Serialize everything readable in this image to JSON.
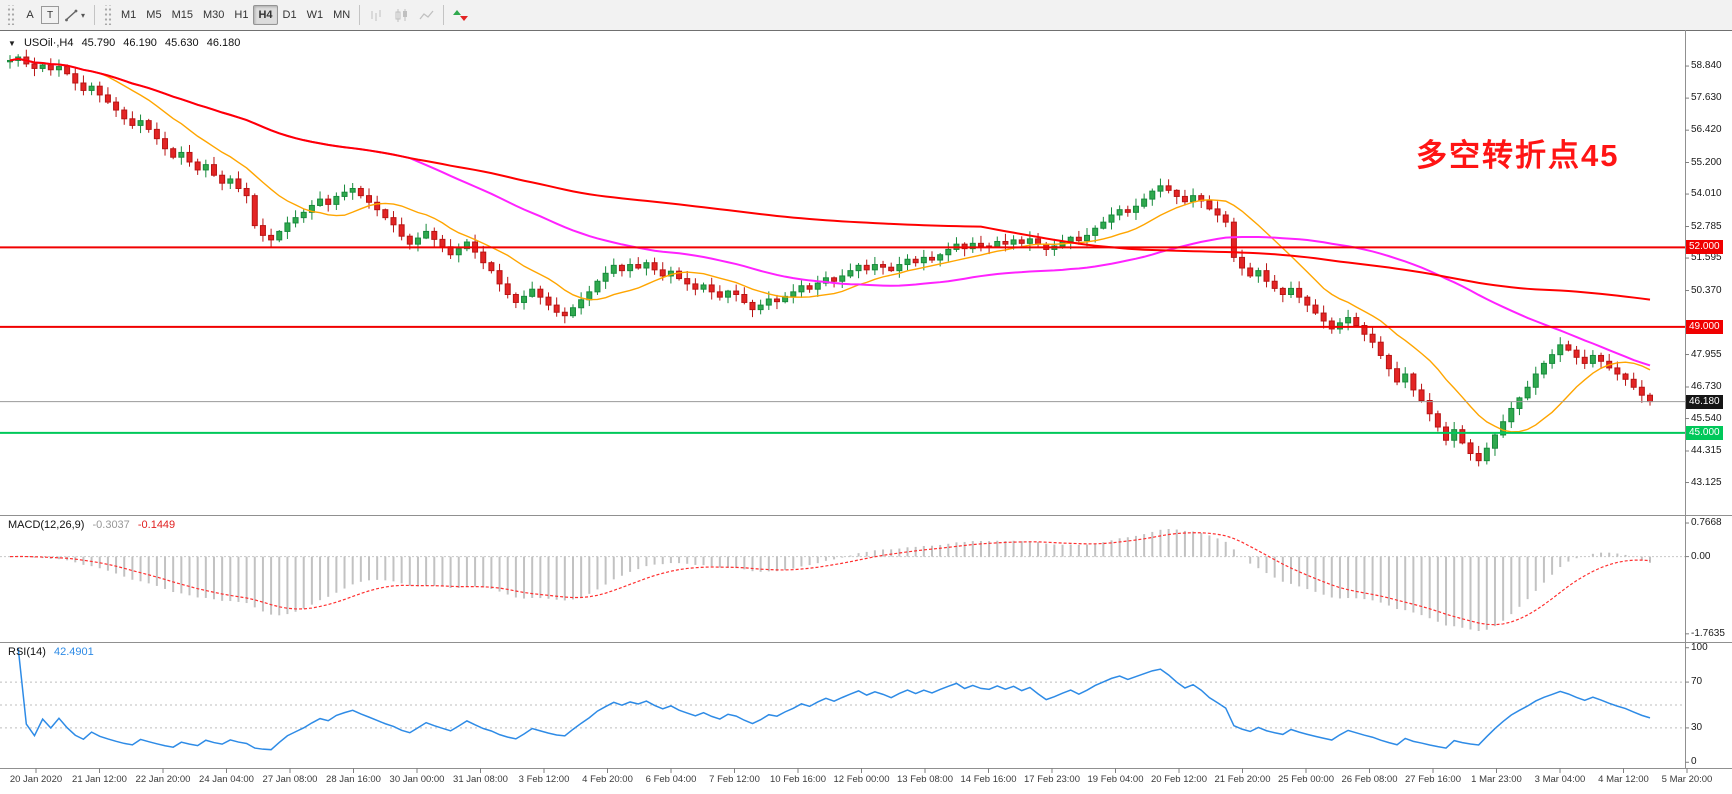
{
  "toolbar": {
    "tools": [
      {
        "label": "A"
      },
      {
        "label": "T"
      }
    ],
    "caret": "▾",
    "timeframes": [
      {
        "label": "M1",
        "active": false
      },
      {
        "label": "M5",
        "active": false
      },
      {
        "label": "M15",
        "active": false
      },
      {
        "label": "M30",
        "active": false
      },
      {
        "label": "H1",
        "active": false
      },
      {
        "label": "H4",
        "active": true
      },
      {
        "label": "D1",
        "active": false
      },
      {
        "label": "W1",
        "active": false
      },
      {
        "label": "MN",
        "active": false
      }
    ]
  },
  "symbol_header": {
    "marker": "▼",
    "title": "USOil·,H4",
    "open": "45.790",
    "high": "46.190",
    "low": "45.630",
    "close": "46.180"
  },
  "annotation": {
    "text": "多空转折点45",
    "color": "#FF1414"
  },
  "price_scale": {
    "labels": [
      {
        "text": "58.840",
        "price": 58.84
      },
      {
        "text": "57.630",
        "price": 57.63
      },
      {
        "text": "56.420",
        "price": 56.42
      },
      {
        "text": "55.200",
        "price": 55.2
      },
      {
        "text": "54.010",
        "price": 54.01
      },
      {
        "text": "52.785",
        "price": 52.785
      },
      {
        "text": "51.595",
        "price": 51.595
      },
      {
        "text": "50.370",
        "price": 50.37
      },
      {
        "text": "47.955",
        "price": 47.955
      },
      {
        "text": "46.730",
        "price": 46.73
      },
      {
        "text": "45.540",
        "price": 45.54
      },
      {
        "text": "44.315",
        "price": 44.315
      },
      {
        "text": "43.125",
        "price": 43.125
      }
    ],
    "tags": [
      {
        "text": "52.000",
        "price": 52.0,
        "bg": "#f00000",
        "fg": "#ffffff"
      },
      {
        "text": "49.000",
        "price": 49.0,
        "bg": "#f00000",
        "fg": "#ffffff"
      },
      {
        "text": "46.180",
        "price": 46.18,
        "bg": "#151515",
        "fg": "#ffffff"
      },
      {
        "text": "45.000",
        "price": 45.0,
        "bg": "#00c85a",
        "fg": "#ffffff"
      }
    ]
  },
  "macd": {
    "name": "MACD(12,26,9)",
    "main_value": "-0.3037",
    "signal_value": "-0.1449",
    "axis": [
      {
        "text": "0.7668",
        "v": 0.7668
      },
      {
        "text": "0.00",
        "v": 0.0
      },
      {
        "text": "-1.7635",
        "v": -1.7635
      }
    ]
  },
  "rsi": {
    "name": "RSI(14)",
    "value": "42.4901",
    "axis": [
      {
        "text": "100",
        "v": 100
      },
      {
        "text": "70",
        "v": 70
      },
      {
        "text": "30",
        "v": 30
      },
      {
        "text": "0",
        "v": 0
      }
    ]
  },
  "time_axis": {
    "labels": [
      "20 Jan 2020",
      "21 Jan 12:00",
      "22 Jan 20:00",
      "24 Jan 04:00",
      "27 Jan 08:00",
      "28 Jan 16:00",
      "30 Jan 00:00",
      "31 Jan 08:00",
      "3 Feb 12:00",
      "4 Feb 20:00",
      "6 Feb 04:00",
      "7 Feb 12:00",
      "10 Feb 16:00",
      "12 Feb 00:00",
      "13 Feb 08:00",
      "14 Feb 16:00",
      "17 Feb 23:00",
      "19 Feb 04:00",
      "20 Feb 12:00",
      "21 Feb 20:00",
      "25 Feb 00:00",
      "26 Feb 08:00",
      "27 Feb 16:00",
      "1 Mar 23:00",
      "3 Mar 04:00",
      "4 Mar 12:00",
      "5 Mar 20:00"
    ]
  },
  "chart_data": {
    "type": "candlestick",
    "symbol": "USOil",
    "timeframe": "H4",
    "ohlc_current": {
      "open": 45.79,
      "high": 46.19,
      "low": 45.63,
      "close": 46.18
    },
    "first_open": 59.0,
    "closes": [
      59.05,
      59.18,
      58.92,
      58.75,
      58.88,
      58.7,
      58.82,
      58.55,
      58.2,
      57.92,
      58.08,
      57.75,
      57.48,
      57.18,
      56.85,
      56.6,
      56.78,
      56.45,
      56.1,
      55.72,
      55.4,
      55.58,
      55.22,
      54.92,
      55.12,
      54.72,
      54.42,
      54.58,
      54.22,
      53.95,
      52.82,
      52.45,
      52.28,
      52.6,
      52.92,
      53.12,
      53.32,
      53.58,
      53.82,
      53.62,
      53.92,
      54.08,
      54.22,
      53.95,
      53.7,
      53.42,
      53.12,
      52.85,
      52.42,
      52.12,
      52.35,
      52.6,
      52.3,
      52.02,
      51.72,
      51.95,
      52.2,
      51.82,
      51.42,
      51.12,
      50.62,
      50.22,
      49.92,
      50.15,
      50.42,
      50.12,
      49.82,
      49.55,
      49.42,
      49.72,
      50.02,
      50.32,
      50.72,
      51.02,
      51.32,
      51.12,
      51.35,
      51.22,
      51.42,
      51.15,
      50.92,
      51.1,
      50.82,
      50.62,
      50.42,
      50.58,
      50.32,
      50.12,
      50.35,
      50.22,
      49.92,
      49.65,
      49.82,
      50.05,
      49.95,
      50.15,
      50.32,
      50.55,
      50.42,
      50.65,
      50.85,
      50.72,
      50.92,
      51.12,
      51.32,
      51.15,
      51.35,
      51.25,
      51.12,
      51.35,
      51.55,
      51.42,
      51.62,
      51.52,
      51.72,
      51.92,
      52.12,
      51.95,
      52.15,
      52.05,
      52.02,
      52.22,
      52.12,
      52.28,
      52.15,
      52.32,
      52.12,
      51.92,
      52.05,
      52.22,
      52.38,
      52.25,
      52.45,
      52.72,
      52.95,
      53.22,
      53.42,
      53.32,
      53.55,
      53.82,
      54.12,
      54.32,
      54.15,
      53.92,
      53.72,
      53.95,
      53.75,
      53.45,
      53.22,
      52.95,
      51.62,
      51.22,
      50.92,
      51.12,
      50.72,
      50.45,
      50.22,
      50.45,
      50.12,
      49.82,
      49.52,
      49.22,
      48.92,
      49.15,
      49.35,
      49.05,
      48.72,
      48.42,
      47.92,
      47.42,
      46.92,
      47.22,
      46.62,
      46.22,
      45.72,
      45.22,
      44.72,
      45.12,
      44.62,
      44.22,
      43.95,
      44.42,
      44.92,
      45.42,
      45.92,
      46.32,
      46.72,
      47.22,
      47.62,
      47.95,
      48.32,
      48.12,
      47.85,
      47.62,
      47.92,
      47.7,
      47.45,
      47.22,
      47.02,
      46.72,
      46.42,
      46.18
    ],
    "colors": {
      "up": {
        "line": "#178a3c",
        "fill": "#2fa94e"
      },
      "down": {
        "line": "#b81414",
        "fill": "#e32424"
      }
    },
    "price_axis": {
      "min": 41.9,
      "max": 60.2
    },
    "levels": [
      {
        "price": 52.0,
        "color": "#f00000",
        "width": 2,
        "role": "resistance"
      },
      {
        "price": 49.0,
        "color": "#f00000",
        "width": 2,
        "role": "resistance"
      },
      {
        "price": 45.0,
        "color": "#00c85a",
        "width": 2,
        "role": "support"
      },
      {
        "price": 46.18,
        "color": "#9a9a9a",
        "width": 1,
        "role": "current-price"
      }
    ],
    "moving_averages": [
      {
        "period": 12,
        "color": "#ffa500",
        "width": 1.4
      },
      {
        "period": 50,
        "color": "#ff22ff",
        "width": 2
      },
      {
        "period": 120,
        "color": "#ff0000",
        "width": 2
      }
    ],
    "macd": {
      "fast": 12,
      "slow": 26,
      "signal": 9,
      "current": -0.3037,
      "signal_current": -0.1449,
      "range": {
        "min": -1.95,
        "max": 0.95
      },
      "histogram_color": "#c2c2c2",
      "signal_color": "#ff3030"
    },
    "rsi": {
      "period": 14,
      "current": 42.4901,
      "levels": [
        70,
        50,
        30
      ],
      "line_color": "#2e8be6"
    }
  }
}
